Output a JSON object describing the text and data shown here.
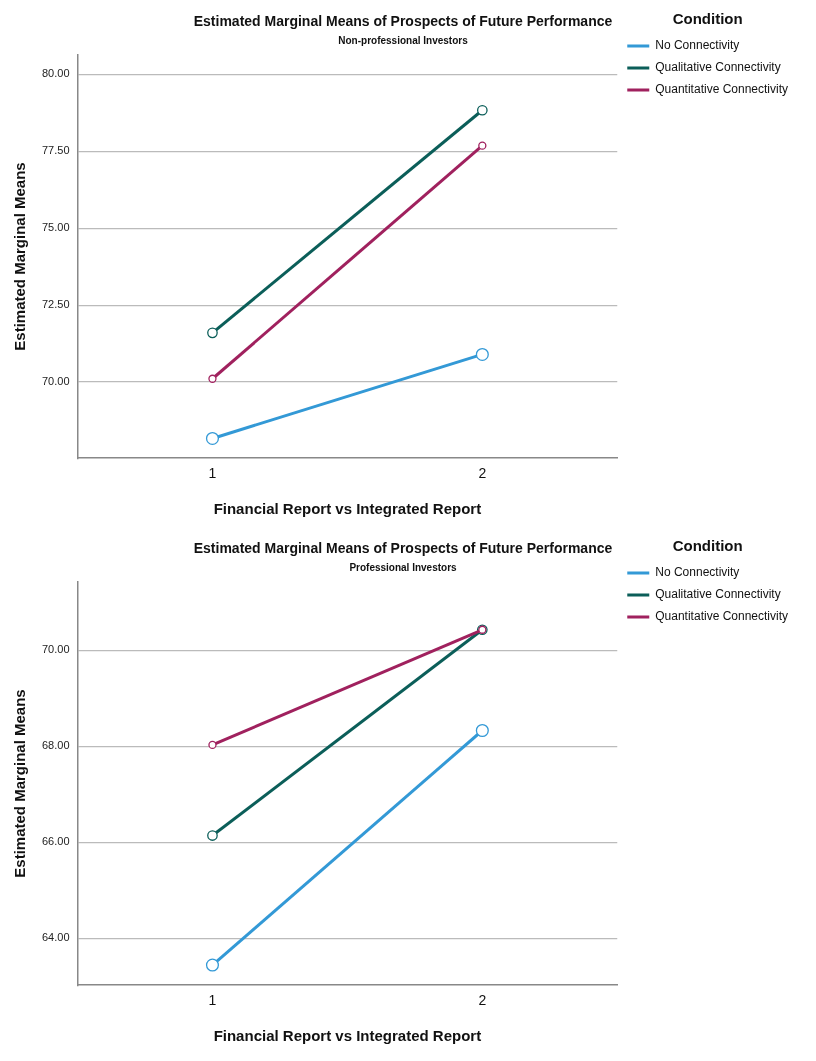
{
  "chart_data": [
    {
      "type": "line",
      "title": "Estimated Marginal Means of Prospects of Future Performance",
      "subtitle": "Non-professional Investors",
      "xlabel": "Financial Report vs Integrated Report",
      "ylabel": "Estimated Marginal Means",
      "legend_title": "Condition",
      "categories": [
        "1",
        "2"
      ],
      "series": [
        {
          "name": "No Connectivity",
          "color": "#3399d6",
          "values": [
            68.17,
            70.9
          ]
        },
        {
          "name": "Qualitative Connectivity",
          "color": "#0b5e59",
          "values": [
            71.6,
            78.83
          ]
        },
        {
          "name": "Quantitative Connectivity",
          "color": "#a0215e",
          "values": [
            70.11,
            77.68
          ]
        }
      ],
      "ylim": [
        67.53,
        80.63
      ],
      "yticks": [
        {
          "value": 70,
          "label": "70.00"
        },
        {
          "value": 72.5,
          "label": "72.50"
        },
        {
          "value": 75,
          "label": "75.00"
        },
        {
          "value": 77.5,
          "label": "77.50"
        },
        {
          "value": 80,
          "label": "80.00"
        }
      ],
      "grid": "y",
      "legend": "top right",
      "marker": "circle",
      "line_style": "solid"
    },
    {
      "type": "line",
      "title": "Estimated Marginal Means of Prospects of Future Performance",
      "subtitle": "Professional Investors",
      "xlabel": "Financial Report vs Integrated Report",
      "ylabel": "Estimated Marginal Means",
      "legend_title": "Condition",
      "categories": [
        "1",
        "2"
      ],
      "series": [
        {
          "name": "No Connectivity",
          "color": "#3399d6",
          "values": [
            63.44,
            68.33
          ]
        },
        {
          "name": "Qualitative Connectivity",
          "color": "#0b5e59",
          "values": [
            66.14,
            70.43
          ]
        },
        {
          "name": "Quantitative Connectivity",
          "color": "#a0215e",
          "values": [
            68.03,
            70.43
          ]
        }
      ],
      "ylim": [
        63.02,
        71.43
      ],
      "yticks": [
        {
          "value": 64,
          "label": "64.00"
        },
        {
          "value": 66,
          "label": "66.00"
        },
        {
          "value": 68,
          "label": "68.00"
        },
        {
          "value": 70,
          "label": "70.00"
        }
      ],
      "grid": "y",
      "legend": "top right",
      "marker": "circle",
      "line_style": "solid"
    }
  ]
}
